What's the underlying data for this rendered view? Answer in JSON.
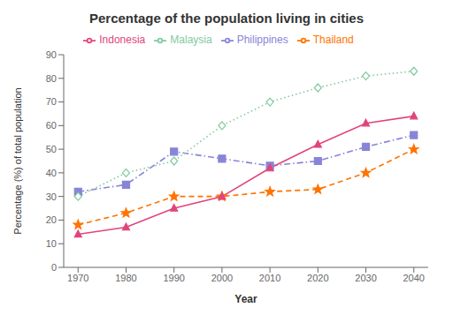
{
  "chart_data": {
    "type": "line",
    "title": "Percentage of the population living in cities",
    "x_label": "Year",
    "y_label": "Percentage (%) of total population",
    "x": [
      1970,
      1980,
      1990,
      2000,
      2010,
      2020,
      2030,
      2040
    ],
    "series": [
      {
        "name": "Philippines",
        "values": [
          32,
          35,
          49,
          46,
          43,
          45,
          51,
          56
        ],
        "line_style": "dashdot",
        "marker": "square"
      },
      {
        "name": "Malaysia",
        "values": [
          30,
          40,
          45,
          60,
          70,
          76,
          81,
          83
        ],
        "line_style": "dotted",
        "marker": "diamond"
      },
      {
        "name": "Thailand",
        "values": [
          18,
          23,
          30,
          30,
          32,
          33,
          40,
          50
        ],
        "line_style": "dashed",
        "marker": "star"
      },
      {
        "name": "Indonesia",
        "values": [
          14,
          17,
          25,
          30,
          42,
          52,
          61,
          64
        ],
        "line_style": "solid",
        "marker": "triangle"
      }
    ],
    "xlim": [
      1967,
      2043
    ],
    "xticks": [
      1970,
      1980,
      1990,
      2000,
      2010,
      2020,
      2030,
      2040
    ],
    "ylim": [
      0,
      90
    ],
    "yticks": [
      0,
      10,
      20,
      30,
      40,
      50,
      60,
      70,
      80,
      90
    ],
    "grid": false,
    "legend": "top"
  }
}
